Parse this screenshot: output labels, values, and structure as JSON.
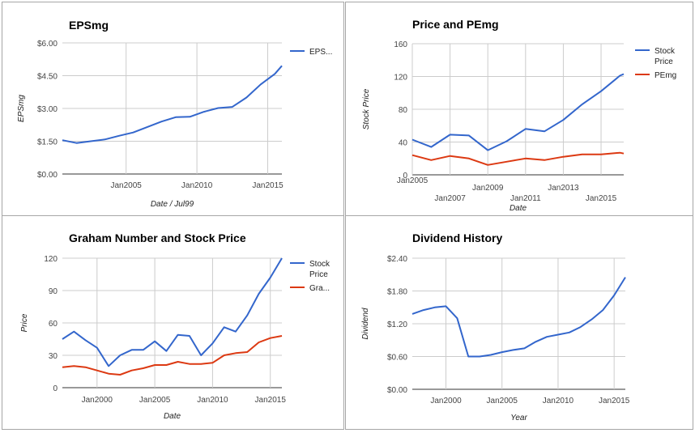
{
  "chart_data": [
    {
      "type": "line",
      "title": "EPSmg",
      "xlabel": "Date / Jul99",
      "ylabel": "EPSmg",
      "xlim": [
        2000.5,
        2016.0
      ],
      "ylim": [
        0,
        6
      ],
      "yticks": [
        0,
        1.5,
        3,
        4.5,
        6
      ],
      "ytick_labels": [
        "$0.00",
        "$1.50",
        "$3.00",
        "$4.50",
        "$6.00"
      ],
      "xticks": [
        2005,
        2010,
        2015
      ],
      "xtick_labels": [
        "Jan2005",
        "Jan2010",
        "Jan2015"
      ],
      "x": [
        2000.5,
        2001.5,
        2002.5,
        2003.5,
        2004.5,
        2005.5,
        2006.5,
        2007.5,
        2008.5,
        2009.5,
        2010.5,
        2011.5,
        2012.5,
        2013.5,
        2014.5,
        2015.5,
        2016.0
      ],
      "series": [
        {
          "name": "EPS...",
          "color": "#3366cc",
          "values": [
            1.55,
            1.42,
            1.5,
            1.58,
            1.75,
            1.9,
            2.15,
            2.4,
            2.6,
            2.62,
            2.85,
            3.02,
            3.07,
            3.5,
            4.1,
            4.58,
            4.95
          ]
        }
      ],
      "legend": "right"
    },
    {
      "type": "line",
      "title": "Price and PEmg",
      "xlabel": "Date",
      "ylabel": "Stock Price",
      "xlim": [
        2005.0,
        2016.2
      ],
      "ylim": [
        0,
        160
      ],
      "yticks": [
        0,
        40,
        80,
        120,
        160
      ],
      "ytick_labels": [
        "0",
        "40",
        "80",
        "120",
        "160"
      ],
      "xticks": [
        2005,
        2007,
        2009,
        2011,
        2013,
        2015
      ],
      "xtick_labels": [
        "Jan2005",
        "Jan2007",
        "Jan2009",
        "Jan2011",
        "Jan2013",
        "Jan2015"
      ],
      "x": [
        2005.0,
        2006.0,
        2007.0,
        2008.0,
        2009.0,
        2010.0,
        2011.0,
        2012.0,
        2013.0,
        2014.0,
        2015.0,
        2016.0,
        2016.2
      ],
      "series": [
        {
          "name": "Stock Price",
          "color": "#3366cc",
          "values": [
            43,
            34,
            49,
            48,
            30,
            41,
            56,
            53,
            67,
            86,
            102,
            121,
            123
          ]
        },
        {
          "name": "PEmg",
          "color": "#dc3912",
          "values": [
            24,
            18,
            23,
            20,
            12,
            16,
            20,
            18,
            22,
            25,
            25,
            27,
            26
          ]
        }
      ],
      "legend": "right"
    },
    {
      "type": "line",
      "title": "Graham Number and Stock Price",
      "xlabel": "Date",
      "ylabel": "Price",
      "xlim": [
        1997.0,
        2016.0
      ],
      "ylim": [
        0,
        120
      ],
      "yticks": [
        0,
        30,
        60,
        90,
        120
      ],
      "ytick_labels": [
        "0",
        "30",
        "60",
        "90",
        "120"
      ],
      "xticks": [
        2000,
        2005,
        2010,
        2015
      ],
      "xtick_labels": [
        "Jan2000",
        "Jan2005",
        "Jan2010",
        "Jan2015"
      ],
      "x": [
        1997,
        1998,
        1999,
        2000,
        2001,
        2002,
        2003,
        2004,
        2005,
        2006,
        2007,
        2008,
        2009,
        2010,
        2011,
        2012,
        2013,
        2014,
        2015,
        2016
      ],
      "series": [
        {
          "name": "Stock Price",
          "color": "#3366cc",
          "values": [
            45,
            52,
            44,
            37,
            20,
            30,
            35,
            35,
            43,
            34,
            49,
            48,
            30,
            41,
            56,
            52,
            67,
            87,
            102,
            120
          ]
        },
        {
          "name": "Gra...",
          "color": "#dc3912",
          "values": [
            19,
            20,
            19,
            16,
            13,
            12,
            16,
            18,
            21,
            21,
            24,
            22,
            22,
            23,
            30,
            32,
            33,
            42,
            46,
            48
          ]
        }
      ],
      "legend": "right"
    },
    {
      "type": "line",
      "title": "Dividend History",
      "xlabel": "Year",
      "ylabel": "Dividend",
      "xlim": [
        1997.0,
        2016.0
      ],
      "ylim": [
        0,
        2.4
      ],
      "yticks": [
        0,
        0.6,
        1.2,
        1.8,
        2.4
      ],
      "ytick_labels": [
        "$0.00",
        "$0.60",
        "$1.20",
        "$1.80",
        "$2.40"
      ],
      "xticks": [
        2000,
        2005,
        2010,
        2015
      ],
      "xtick_labels": [
        "Jan2000",
        "Jan2005",
        "Jan2010",
        "Jan2015"
      ],
      "x": [
        1997,
        1998,
        1999,
        2000,
        2001,
        2002,
        2003,
        2004,
        2005,
        2006,
        2007,
        2008,
        2009,
        2010,
        2011,
        2012,
        2013,
        2014,
        2015,
        2016
      ],
      "series": [
        {
          "name": "",
          "color": "#3366cc",
          "values": [
            1.38,
            1.45,
            1.5,
            1.52,
            1.3,
            0.6,
            0.6,
            0.63,
            0.68,
            0.72,
            0.75,
            0.87,
            0.96,
            1.0,
            1.04,
            1.14,
            1.28,
            1.45,
            1.72,
            2.05
          ]
        }
      ],
      "legend": "none"
    }
  ]
}
